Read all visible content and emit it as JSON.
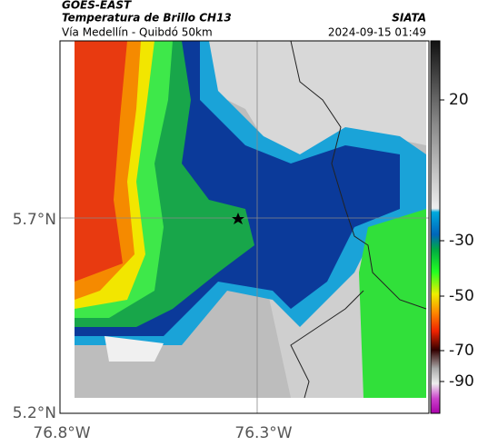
{
  "header": {
    "source": "GOES-EAST",
    "title": "Temperatura de Brillo CH13",
    "brand": "SIATA",
    "route": "Vía Medellín - Quibdó 50km",
    "datetime": "2024-09-15 01:49"
  },
  "axes": {
    "y_labels": [
      "5.7°N",
      "5.2°N"
    ],
    "x_labels": [
      "76.8°W",
      "76.3°W"
    ]
  },
  "colorbar": {
    "labels": [
      "20",
      "-30",
      "-50",
      "-70",
      "-90"
    ]
  }
}
